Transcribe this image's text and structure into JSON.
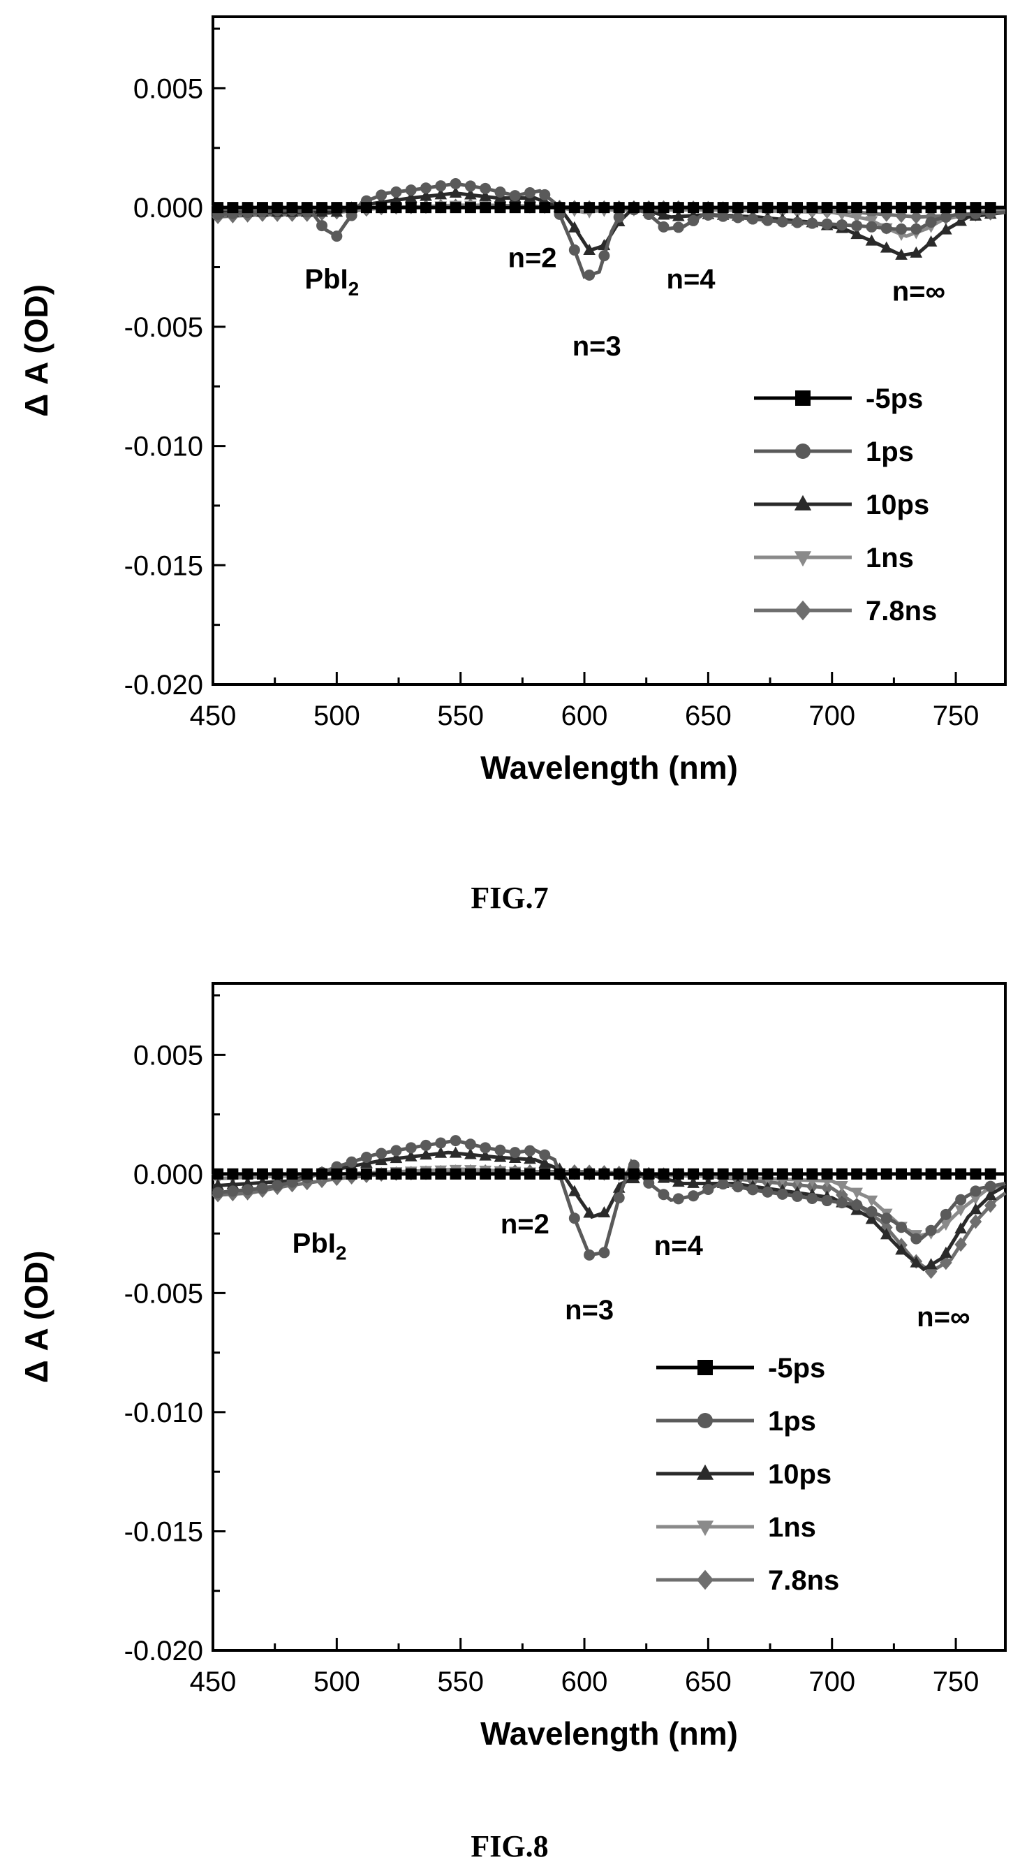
{
  "chart_data": [
    {
      "type": "line",
      "caption": "FIG.7",
      "xlabel": "Wavelength (nm)",
      "ylabel": "Δ A (OD)",
      "xlim": [
        450,
        770
      ],
      "ylim": [
        -0.02,
        0.008
      ],
      "xticks": [
        "450",
        "500",
        "550",
        "600",
        "650",
        "700",
        "750"
      ],
      "yticks": [
        "0.005",
        "0.000",
        "-0.005",
        "-0.010",
        "-0.015",
        "-0.020"
      ],
      "grid": false,
      "legend_position": "bottom-right",
      "annotations": [
        {
          "text": "PbI",
          "sub": "2",
          "x": 498,
          "y": -0.0034
        },
        {
          "text": "n=2",
          "x": 579,
          "y": -0.0025
        },
        {
          "text": "n=3",
          "x": 605,
          "y": -0.0062
        },
        {
          "text": "n=4",
          "x": 643,
          "y": -0.0034
        },
        {
          "text": "n=∞",
          "x": 735,
          "y": -0.0039
        }
      ],
      "series": [
        {
          "name": "-5ps",
          "color": "#000000",
          "marker": "square",
          "points": [
            [
              450,
              0
            ],
            [
              500,
              0
            ],
            [
              550,
              0
            ],
            [
              600,
              0
            ],
            [
              650,
              0
            ],
            [
              700,
              0
            ],
            [
              750,
              0
            ],
            [
              770,
              0
            ]
          ]
        },
        {
          "name": "1ps",
          "color": "#5a5a5a",
          "marker": "circle",
          "points": [
            [
              450,
              -0.0003
            ],
            [
              480,
              -0.0001
            ],
            [
              490,
              -0.0002
            ],
            [
              495,
              -0.0009
            ],
            [
              500,
              -0.0012
            ],
            [
              504,
              -0.0006
            ],
            [
              510,
              0.0002
            ],
            [
              520,
              0.0006
            ],
            [
              535,
              0.0008
            ],
            [
              548,
              0.001
            ],
            [
              560,
              0.0008
            ],
            [
              572,
              0.0005
            ],
            [
              582,
              0.0007
            ],
            [
              588,
              0.0002
            ],
            [
              595,
              -0.0015
            ],
            [
              600,
              -0.0029
            ],
            [
              606,
              -0.0027
            ],
            [
              611,
              -0.001
            ],
            [
              616,
              0.0
            ],
            [
              625,
              -0.0002
            ],
            [
              633,
              -0.0009
            ],
            [
              640,
              -0.0008
            ],
            [
              648,
              -0.0003
            ],
            [
              660,
              -0.0004
            ],
            [
              680,
              -0.0006
            ],
            [
              700,
              -0.0007
            ],
            [
              715,
              -0.0008
            ],
            [
              725,
              -0.0009
            ],
            [
              735,
              -0.0009
            ],
            [
              742,
              -0.0005
            ],
            [
              750,
              -0.0003
            ],
            [
              770,
              -0.0002
            ]
          ]
        },
        {
          "name": "10ps",
          "color": "#2a2a2a",
          "marker": "triangle-up",
          "points": [
            [
              450,
              -0.0002
            ],
            [
              490,
              -0.0002
            ],
            [
              500,
              -0.0002
            ],
            [
              510,
              0.0001
            ],
            [
              530,
              0.0004
            ],
            [
              548,
              0.0006
            ],
            [
              565,
              0.0004
            ],
            [
              580,
              0.0004
            ],
            [
              590,
              0.0
            ],
            [
              597,
              -0.001
            ],
            [
              602,
              -0.0018
            ],
            [
              608,
              -0.0016
            ],
            [
              614,
              -0.0006
            ],
            [
              620,
              0.0
            ],
            [
              635,
              -0.0004
            ],
            [
              650,
              -0.0003
            ],
            [
              670,
              -0.0004
            ],
            [
              690,
              -0.0006
            ],
            [
              705,
              -0.0009
            ],
            [
              718,
              -0.0015
            ],
            [
              728,
              -0.002
            ],
            [
              735,
              -0.0019
            ],
            [
              745,
              -0.001
            ],
            [
              755,
              -0.0004
            ],
            [
              770,
              -0.0002
            ]
          ]
        },
        {
          "name": "1ns",
          "color": "#8a8a8a",
          "marker": "triangle-down",
          "points": [
            [
              450,
              -0.0001
            ],
            [
              500,
              -0.0001
            ],
            [
              550,
              0.0001
            ],
            [
              590,
              0.0
            ],
            [
              600,
              -0.0002
            ],
            [
              610,
              -0.0001
            ],
            [
              650,
              -0.0001
            ],
            [
              700,
              -0.0002
            ],
            [
              715,
              -0.0005
            ],
            [
              725,
              -0.001
            ],
            [
              730,
              -0.0012
            ],
            [
              738,
              -0.0009
            ],
            [
              745,
              -0.0005
            ],
            [
              760,
              -0.0002
            ],
            [
              770,
              -0.0001
            ]
          ]
        },
        {
          "name": "7.8ns",
          "color": "#6e6e6e",
          "marker": "diamond",
          "points": [
            [
              450,
              -0.0004
            ],
            [
              470,
              -0.0003
            ],
            [
              490,
              -0.0003
            ],
            [
              500,
              -0.0002
            ],
            [
              520,
              0.0
            ],
            [
              560,
              0.0001
            ],
            [
              600,
              0.0
            ],
            [
              640,
              0.0
            ],
            [
              680,
              -0.0001
            ],
            [
              710,
              -0.0002
            ],
            [
              735,
              -0.0004
            ],
            [
              755,
              -0.0003
            ],
            [
              770,
              -0.0002
            ]
          ]
        }
      ]
    },
    {
      "type": "line",
      "caption": "FIG.8",
      "xlabel": "Wavelength (nm)",
      "ylabel": "Δ A (OD)",
      "xlim": [
        450,
        770
      ],
      "ylim": [
        -0.02,
        0.008
      ],
      "xticks": [
        "450",
        "500",
        "550",
        "600",
        "650",
        "700",
        "750"
      ],
      "yticks": [
        "0.005",
        "0.000",
        "-0.005",
        "-0.010",
        "-0.015",
        "-0.020"
      ],
      "grid": false,
      "legend_position": "bottom-right",
      "annotations": [
        {
          "text": "PbI",
          "sub": "2",
          "x": 493,
          "y": -0.0033
        },
        {
          "text": "n=2",
          "x": 576,
          "y": -0.0025
        },
        {
          "text": "n=3",
          "x": 602,
          "y": -0.0061
        },
        {
          "text": "n=4",
          "x": 638,
          "y": -0.0034
        },
        {
          "text": "n=∞",
          "x": 745,
          "y": -0.0064
        }
      ],
      "series": [
        {
          "name": "-5ps",
          "color": "#000000",
          "marker": "square",
          "points": [
            [
              450,
              0
            ],
            [
              500,
              0
            ],
            [
              550,
              0
            ],
            [
              600,
              0
            ],
            [
              650,
              0
            ],
            [
              700,
              0
            ],
            [
              750,
              0
            ],
            [
              770,
              0
            ]
          ]
        },
        {
          "name": "1ps",
          "color": "#5a5a5a",
          "marker": "circle",
          "points": [
            [
              450,
              -0.0008
            ],
            [
              470,
              -0.0006
            ],
            [
              480,
              -0.0004
            ],
            [
              490,
              -0.0001
            ],
            [
              500,
              0.0003
            ],
            [
              515,
              0.0008
            ],
            [
              530,
              0.0011
            ],
            [
              548,
              0.0014
            ],
            [
              560,
              0.0011
            ],
            [
              572,
              0.0009
            ],
            [
              580,
              0.001
            ],
            [
              588,
              0.0006
            ],
            [
              595,
              -0.0016
            ],
            [
              602,
              -0.0034
            ],
            [
              608,
              -0.0033
            ],
            [
              614,
              -0.001
            ],
            [
              619,
              0.0005
            ],
            [
              625,
              -0.0003
            ],
            [
              635,
              -0.0011
            ],
            [
              645,
              -0.0009
            ],
            [
              655,
              -0.0004
            ],
            [
              670,
              -0.0007
            ],
            [
              690,
              -0.001
            ],
            [
              710,
              -0.0013
            ],
            [
              725,
              -0.002
            ],
            [
              735,
              -0.0028
            ],
            [
              742,
              -0.0022
            ],
            [
              750,
              -0.0012
            ],
            [
              760,
              -0.0006
            ],
            [
              770,
              -0.0004
            ]
          ]
        },
        {
          "name": "10ps",
          "color": "#2a2a2a",
          "marker": "triangle-up",
          "points": [
            [
              450,
              -0.0005
            ],
            [
              480,
              -0.0003
            ],
            [
              500,
              0.0002
            ],
            [
              520,
              0.0006
            ],
            [
              545,
              0.0009
            ],
            [
              565,
              0.0007
            ],
            [
              580,
              0.0006
            ],
            [
              590,
              0.0002
            ],
            [
              597,
              -0.0009
            ],
            [
              603,
              -0.0018
            ],
            [
              609,
              -0.0016
            ],
            [
              615,
              -0.0004
            ],
            [
              625,
              0.0
            ],
            [
              640,
              -0.0004
            ],
            [
              660,
              -0.0004
            ],
            [
              680,
              -0.0007
            ],
            [
              700,
              -0.001
            ],
            [
              715,
              -0.0018
            ],
            [
              728,
              -0.0032
            ],
            [
              737,
              -0.004
            ],
            [
              745,
              -0.0035
            ],
            [
              755,
              -0.0018
            ],
            [
              765,
              -0.0008
            ],
            [
              770,
              -0.0005
            ]
          ]
        },
        {
          "name": "1ns",
          "color": "#8a8a8a",
          "marker": "triangle-down",
          "points": [
            [
              450,
              -0.0002
            ],
            [
              500,
              0.0
            ],
            [
              550,
              0.0002
            ],
            [
              600,
              0.0
            ],
            [
              650,
              -0.0001
            ],
            [
              700,
              -0.0003
            ],
            [
              715,
              -0.001
            ],
            [
              728,
              -0.0022
            ],
            [
              735,
              -0.0026
            ],
            [
              743,
              -0.0024
            ],
            [
              752,
              -0.0015
            ],
            [
              762,
              -0.0007
            ],
            [
              770,
              -0.0004
            ]
          ]
        },
        {
          "name": "7.8ns",
          "color": "#6e6e6e",
          "marker": "diamond",
          "points": [
            [
              450,
              -0.0009
            ],
            [
              465,
              -0.0008
            ],
            [
              480,
              -0.0005
            ],
            [
              500,
              -0.0002
            ],
            [
              520,
              0.0
            ],
            [
              550,
              0.0001
            ],
            [
              600,
              0.0001
            ],
            [
              650,
              -0.0001
            ],
            [
              700,
              -0.0006
            ],
            [
              720,
              -0.002
            ],
            [
              733,
              -0.0036
            ],
            [
              740,
              -0.0041
            ],
            [
              748,
              -0.0036
            ],
            [
              758,
              -0.002
            ],
            [
              766,
              -0.0011
            ],
            [
              770,
              -0.0008
            ]
          ]
        }
      ]
    }
  ]
}
